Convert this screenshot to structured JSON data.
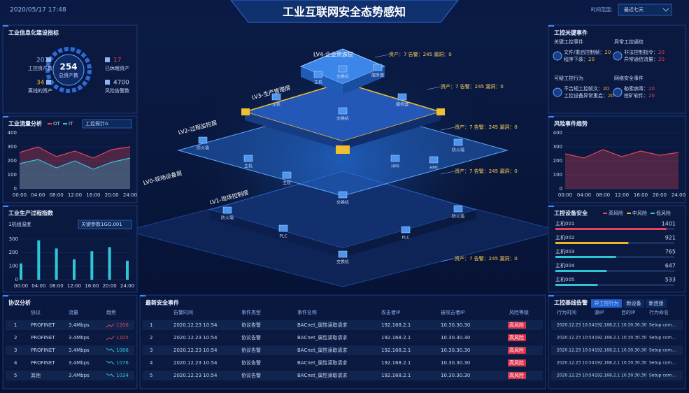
{
  "header": {
    "datetime": "2020/05/17 17:48",
    "title": "工业互联网安全态势感知",
    "range_label": "时间范围：",
    "range_value": "最近七天"
  },
  "assets": {
    "title": "工业信息化建设指标",
    "total": 254,
    "total_label": "总资产数",
    "items": [
      {
        "value": 201,
        "label": "工控资产数"
      },
      {
        "value": 34,
        "label": "离线的资产"
      },
      {
        "value": 17,
        "label": "已休眠资产"
      },
      {
        "value": 4700,
        "label": "风险告警数"
      }
    ]
  },
  "traffic": {
    "title": "工业流量分析",
    "probe": "工控探针A",
    "categories": [
      "00:00",
      "04:00",
      "08:00",
      "12:00",
      "16:00",
      "20:00",
      "24:00"
    ],
    "series": [
      {
        "name": "OT",
        "color": "#e8435a",
        "values": [
          260,
          300,
          230,
          270,
          220,
          280,
          300
        ]
      },
      {
        "name": "IT",
        "color": "#2ec6d6",
        "values": [
          180,
          210,
          150,
          200,
          140,
          190,
          220
        ]
      }
    ],
    "ylim": [
      0,
      400
    ],
    "yticks": [
      0,
      100,
      200,
      300,
      400
    ]
  },
  "production": {
    "title": "工业生产过程指数",
    "subtitle": "1机组温度",
    "param": "关键参数1GO.001",
    "categories": [
      "00:00",
      "04:00",
      "08:00",
      "12:00",
      "16:00",
      "20:00",
      "24:00"
    ],
    "values": [
      120,
      290,
      230,
      150,
      210,
      240,
      140
    ],
    "color": "#2ec6d6",
    "ylim": [
      0,
      340
    ],
    "yticks": [
      0,
      100,
      200,
      300
    ]
  },
  "key_events": {
    "title": "工控关键事件",
    "groups": [
      {
        "title": "关键工控事件",
        "items": [
          {
            "label": "文件/重启控制帧：",
            "value": 20
          },
          {
            "label": "程序下装：",
            "value": 20
          }
        ]
      },
      {
        "title": "异常工控通信",
        "items": [
          {
            "label": "非法控制指令：",
            "value": 20
          },
          {
            "label": "异常通信流量：",
            "value": 20
          }
        ]
      },
      {
        "title": "可疑工控行为",
        "items": [
          {
            "label": "不合规工控帧文：",
            "value": 20
          },
          {
            "label": "工控设备异常重启：",
            "value": 20
          }
        ]
      },
      {
        "title": "网络安全事件",
        "items": [
          {
            "label": "勒索病毒：",
            "value": 20
          },
          {
            "label": "挖矿软件：",
            "value": 20
          }
        ]
      }
    ]
  },
  "risk_trend": {
    "title": "风险事件趋势",
    "categories": [
      "00:00",
      "04:00",
      "08:00",
      "12:00",
      "16:00",
      "20:00",
      "24:00"
    ],
    "values": [
      250,
      220,
      280,
      230,
      270,
      240,
      260
    ],
    "color": "#e8435a",
    "ylim": [
      0,
      400
    ],
    "yticks": [
      0,
      100,
      200,
      300,
      400
    ]
  },
  "device_security": {
    "title": "工控设备安全",
    "legend": [
      {
        "name": "高风险",
        "color": "#e8435a"
      },
      {
        "name": "中风险",
        "color": "#f0b429"
      },
      {
        "name": "低风险",
        "color": "#2ec6d6"
      }
    ],
    "xlim": [
      0,
      1500
    ],
    "rows": [
      {
        "name": "主机001",
        "value": 1401,
        "color": "#e8435a"
      },
      {
        "name": "主机002",
        "value": 921,
        "color": "#f0b429"
      },
      {
        "name": "主机003",
        "value": 765,
        "color": "#2ec6d6"
      },
      {
        "name": "主机004",
        "value": 647,
        "color": "#2ec6d6"
      },
      {
        "name": "主机005",
        "value": 533,
        "color": "#2ec6d6"
      }
    ]
  },
  "pyramid": {
    "layers": [
      "LV4-企业资源层",
      "LV3-生产管理层",
      "LV2-过程监控层",
      "LV1-现场控制层",
      "LV0-现场设备层"
    ],
    "stats": [
      "资产：7  告警：245  漏洞：0",
      "资产：7  告警：245  漏洞：0",
      "资产：7  告警：245  漏洞：0",
      "资产：7  告警：245  漏洞：0",
      "资产：7  告警：245  漏洞：0"
    ],
    "nodes": [
      "主机",
      "交换机",
      "服务器",
      "主机",
      "交换机",
      "服务器",
      "防火墙",
      "主机",
      "主机",
      "HMI",
      "HMI",
      "防火墙",
      "交换机",
      "防火墙",
      "PLC",
      "PLC",
      "交换机",
      "防火墙"
    ]
  },
  "protocols": {
    "title": "协议分析",
    "headers": [
      "协议",
      "流量",
      "趋势"
    ],
    "rows": [
      {
        "no": 1,
        "name": "PROFINET",
        "flow": "3.4Mbps",
        "trend": "up",
        "count": 1206
      },
      {
        "no": 2,
        "name": "PROFINET",
        "flow": "3.4Mbps",
        "trend": "up",
        "count": 1105
      },
      {
        "no": 3,
        "name": "PROFINET",
        "flow": "3.4Mbps",
        "trend": "down",
        "count": 1086
      },
      {
        "no": 4,
        "name": "PROFINET",
        "flow": "3.4Mbps",
        "trend": "down",
        "count": 1076
      },
      {
        "no": 5,
        "name": "其他",
        "flow": "3.4Mbps",
        "trend": "down",
        "count": 1034
      }
    ]
  },
  "events": {
    "title": "最新安全事件",
    "headers": [
      "告警时间",
      "事件类型",
      "事件名称",
      "攻击者IP",
      "被攻击者IP",
      "风险等级"
    ],
    "rows": [
      {
        "no": 1,
        "cells": [
          "2020.12.23 10:54",
          "协议告警",
          "BACnet_属性读取请求",
          "192.168.2.1",
          "10.30.30.30",
          "高风险"
        ]
      },
      {
        "no": 2,
        "cells": [
          "2020.12.23 10:54",
          "协议告警",
          "BACnet_属性读取请求",
          "192.168.2.1",
          "10.30.30.30",
          "高风险"
        ]
      },
      {
        "no": 3,
        "cells": [
          "2020.12.23 10:54",
          "协议告警",
          "BACnet_属性读取请求",
          "192.168.2.1",
          "10.30.30.30",
          "高风险"
        ]
      },
      {
        "no": 4,
        "cells": [
          "2020.12.23 10:54",
          "协议告警",
          "BACnet_属性读取请求",
          "192.168.2.1",
          "10.30.30.30",
          "高风险"
        ]
      },
      {
        "no": 5,
        "cells": [
          "2020.12.23 10:54",
          "协议告警",
          "BACnet_属性读取请求",
          "192.168.2.1",
          "10.30.30.30",
          "高风险"
        ]
      }
    ]
  },
  "baseline": {
    "title": "工控基线告警",
    "tabs": [
      "异工控行为",
      "新设备",
      "新连接"
    ],
    "headers": [
      "行为时间",
      "源IP",
      "目的IP",
      "行为命名"
    ],
    "rows": [
      [
        "2020.12.23 10:54",
        "192.168.2.1",
        "10.30.30.30",
        "Setup com..."
      ],
      [
        "2020.12.23 10:54",
        "192.168.2.1",
        "10.30.30.30",
        "Setup com..."
      ],
      [
        "2020.12.23 10:54",
        "192.168.2.1",
        "10.30.30.30",
        "Setup com..."
      ],
      [
        "2020.12.23 10:54",
        "192.168.2.1",
        "10.30.30.30",
        "Setup com..."
      ],
      [
        "2020.12.23 10:54",
        "192.168.2.1",
        "10.30.30.30",
        "Setup com..."
      ]
    ]
  }
}
